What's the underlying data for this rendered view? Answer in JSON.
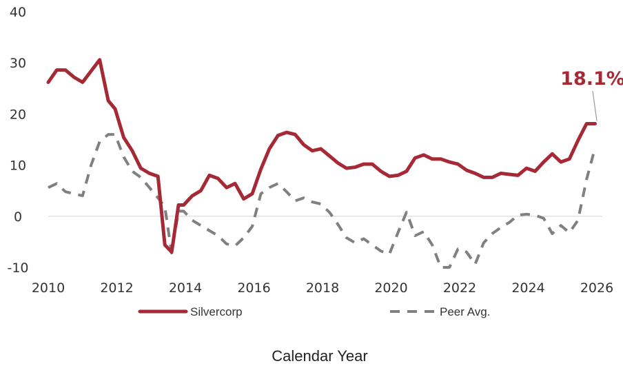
{
  "chart_data": {
    "type": "line",
    "xlabel": "Calendar Year",
    "ylabel": "",
    "xlim": [
      2010,
      2026
    ],
    "ylim": [
      -10,
      40
    ],
    "x_ticks": [
      "2010",
      "2012",
      "2014",
      "2016",
      "2018",
      "2020",
      "2022",
      "2024",
      "2026"
    ],
    "y_ticks": [
      "-10",
      "0",
      "10",
      "20",
      "30",
      "40"
    ],
    "grid": false,
    "zero_line": true,
    "legend_position": "bottom",
    "annotation": {
      "text": "18.1%",
      "series": "Silvercorp",
      "x": 2026.0,
      "y": 18.1
    },
    "series": [
      {
        "name": "Silvercorp",
        "color": "#A52A35",
        "style": "solid",
        "x": [
          2010.0,
          2010.25,
          2010.5,
          2010.75,
          2011.0,
          2011.25,
          2011.5,
          2011.75,
          2011.95,
          2012.2,
          2012.45,
          2012.7,
          2012.95,
          2013.2,
          2013.4,
          2013.6,
          2013.8,
          2013.95,
          2014.2,
          2014.45,
          2014.7,
          2014.95,
          2015.2,
          2015.45,
          2015.7,
          2015.95,
          2016.2,
          2016.45,
          2016.7,
          2016.95,
          2017.2,
          2017.45,
          2017.7,
          2017.95,
          2018.2,
          2018.45,
          2018.7,
          2018.95,
          2019.2,
          2019.45,
          2019.7,
          2019.95,
          2020.2,
          2020.45,
          2020.7,
          2020.95,
          2021.2,
          2021.45,
          2021.7,
          2021.95,
          2022.2,
          2022.45,
          2022.7,
          2022.95,
          2023.2,
          2023.45,
          2023.7,
          2023.95,
          2024.2,
          2024.45,
          2024.7,
          2024.95,
          2025.2,
          2025.45,
          2025.7,
          2025.95
        ],
        "values": [
          26.2,
          28.6,
          28.6,
          27.2,
          26.2,
          28.4,
          30.6,
          22.6,
          21.0,
          15.4,
          12.8,
          9.4,
          8.4,
          7.8,
          -5.6,
          -7.0,
          2.2,
          2.2,
          4.0,
          5.0,
          8.0,
          7.4,
          5.6,
          6.4,
          3.4,
          4.4,
          9.2,
          13.2,
          15.8,
          16.4,
          16.0,
          14.0,
          12.8,
          13.2,
          11.8,
          10.4,
          9.4,
          9.6,
          10.2,
          10.2,
          8.8,
          7.8,
          8.0,
          8.8,
          11.4,
          12.0,
          11.2,
          11.2,
          10.6,
          10.2,
          9.0,
          8.4,
          7.6,
          7.6,
          8.4,
          8.2,
          8.0,
          9.4,
          8.8,
          10.6,
          12.2,
          10.6,
          11.2,
          14.8,
          18.1,
          18.1
        ]
      },
      {
        "name": "Peer Avg.",
        "color": "#808080",
        "style": "dashed",
        "x": [
          2010.0,
          2010.25,
          2010.5,
          2010.75,
          2011.0,
          2011.25,
          2011.5,
          2011.75,
          2011.95,
          2012.2,
          2012.45,
          2012.7,
          2012.95,
          2013.2,
          2013.4,
          2013.6,
          2013.8,
          2013.95,
          2014.2,
          2014.45,
          2014.7,
          2014.95,
          2015.2,
          2015.45,
          2015.7,
          2015.95,
          2016.2,
          2016.45,
          2016.7,
          2016.95,
          2017.2,
          2017.45,
          2017.7,
          2017.95,
          2018.2,
          2018.45,
          2018.7,
          2018.95,
          2019.2,
          2019.45,
          2019.7,
          2019.95,
          2020.2,
          2020.45,
          2020.7,
          2020.95,
          2021.2,
          2021.45,
          2021.7,
          2021.95,
          2022.2,
          2022.45,
          2022.7,
          2022.95,
          2023.2,
          2023.45,
          2023.7,
          2023.95,
          2024.2,
          2024.45,
          2024.7,
          2024.95,
          2025.2,
          2025.45,
          2025.7,
          2025.95
        ],
        "values": [
          5.6,
          6.4,
          4.8,
          4.4,
          4.0,
          10.0,
          14.6,
          16.0,
          16.0,
          11.6,
          8.8,
          7.6,
          5.6,
          3.6,
          1.8,
          -7.2,
          1.0,
          1.0,
          -0.8,
          -1.8,
          -2.8,
          -3.8,
          -5.4,
          -5.8,
          -4.2,
          -2.0,
          4.4,
          5.6,
          6.4,
          4.8,
          3.0,
          3.6,
          2.8,
          2.4,
          0.8,
          -1.6,
          -4.2,
          -5.2,
          -4.4,
          -5.6,
          -6.8,
          -7.4,
          -3.2,
          0.8,
          -3.8,
          -3.0,
          -5.6,
          -10.0,
          -10.0,
          -6.4,
          -7.0,
          -9.4,
          -5.2,
          -3.4,
          -2.2,
          -1.2,
          0.2,
          0.4,
          0.2,
          -0.4,
          -3.4,
          -1.8,
          -3.2,
          -0.8,
          7.2,
          13.4
        ]
      }
    ]
  }
}
